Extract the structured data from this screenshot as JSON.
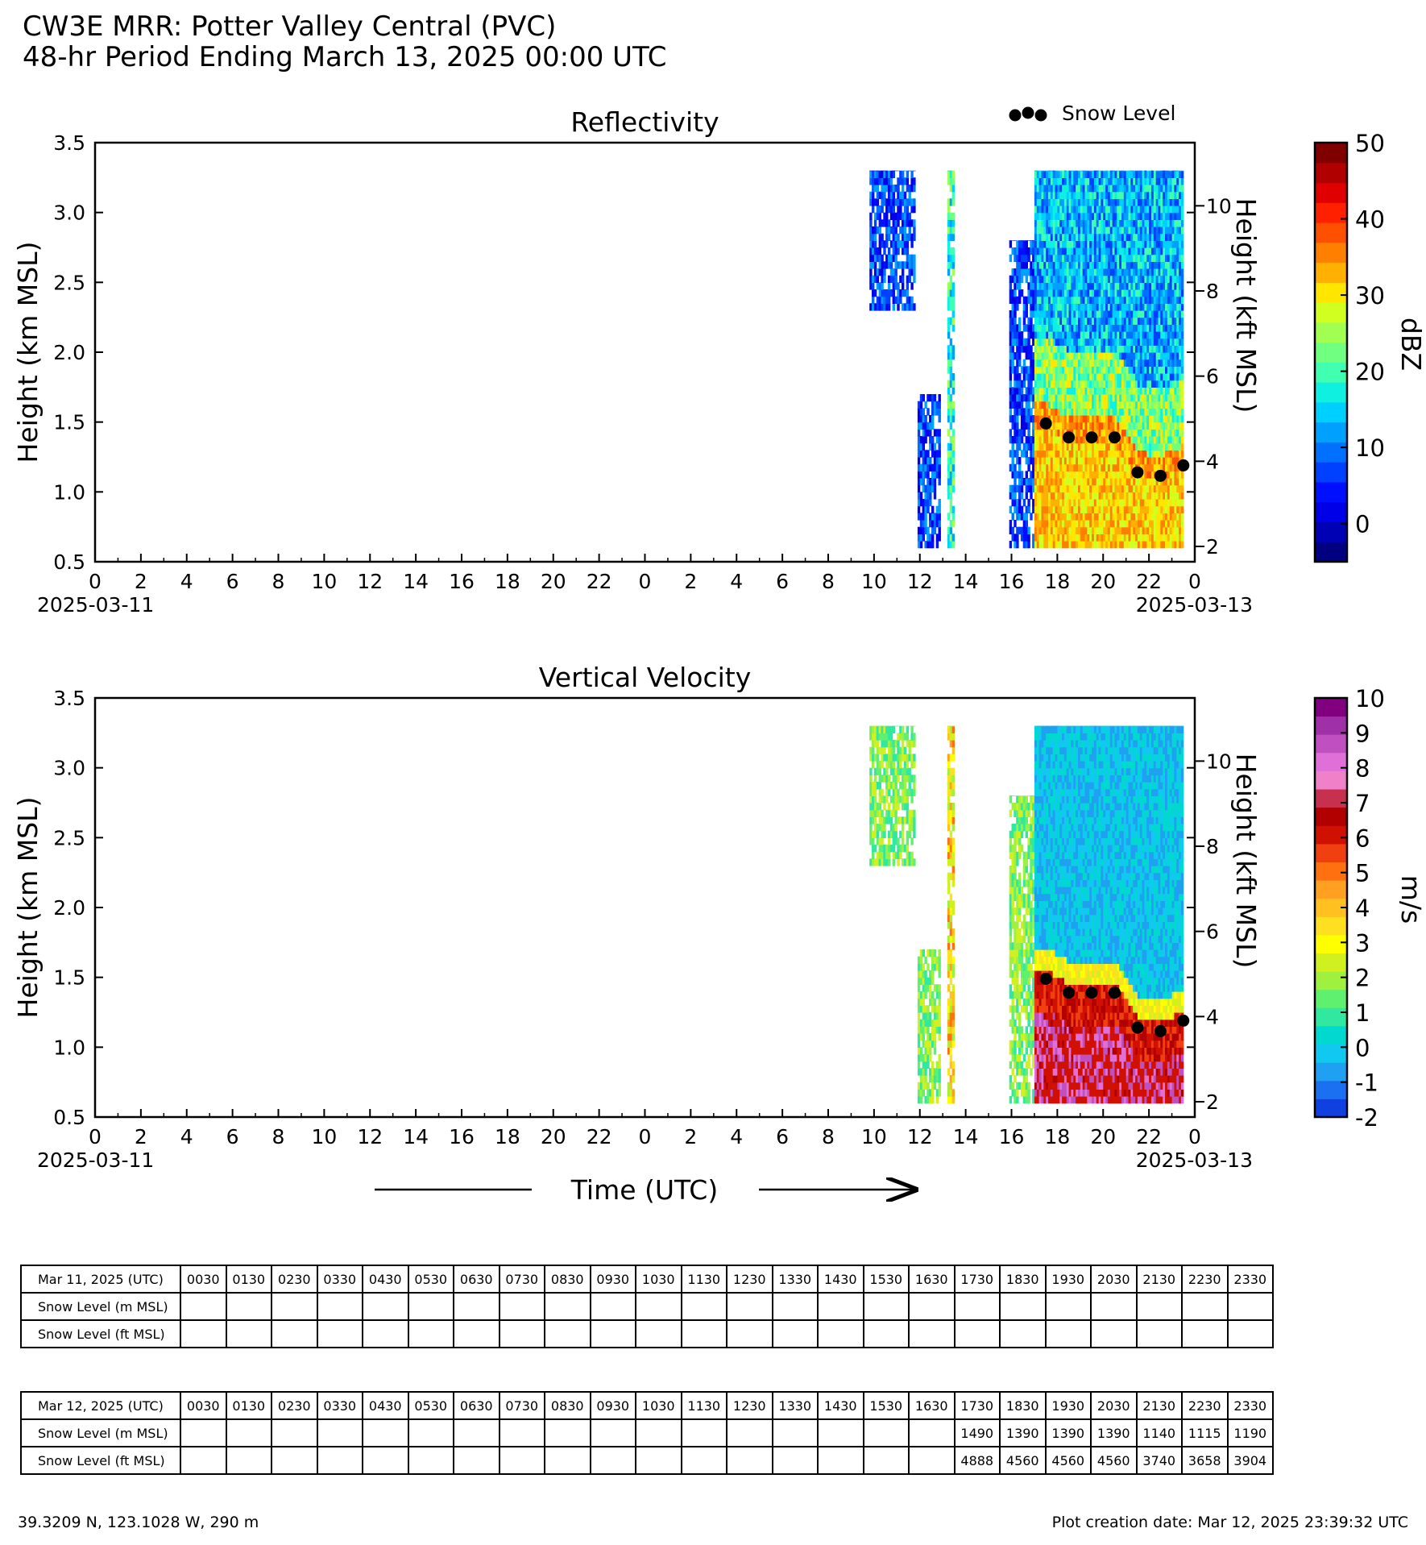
{
  "header": {
    "title_line1": "CW3E MRR: Potter Valley Central (PVC)",
    "title_line2": "48-hr Period Ending March 13, 2025 00:00 UTC"
  },
  "chart_data": [
    {
      "type": "heatmap",
      "title": "Reflectivity",
      "ylabel": "Height (km MSL)",
      "ylabel_right": "Height (kft MSL)",
      "xlabel": "Time (UTC)",
      "xlim_hours": [
        0,
        48
      ],
      "ylim": [
        0.5,
        3.5
      ],
      "y_ticks": [
        "0.5",
        "1.0",
        "1.5",
        "2.0",
        "2.5",
        "3.0",
        "3.5"
      ],
      "y_right_ticks": [
        "2",
        "4",
        "6",
        "8",
        "10"
      ],
      "x_tick_labels": [
        "0",
        "2",
        "4",
        "6",
        "8",
        "10",
        "12",
        "14",
        "16",
        "18",
        "20",
        "22",
        "0",
        "2",
        "4",
        "6",
        "8",
        "10",
        "12",
        "14",
        "16",
        "18",
        "20",
        "22",
        "0"
      ],
      "date_labels": [
        "2025-03-11",
        "2025-03-13"
      ],
      "colorbar": {
        "label": "dBZ",
        "range": [
          -5,
          50
        ],
        "ticks": [
          "0",
          "10",
          "20",
          "30",
          "40",
          "50"
        ],
        "colors": [
          "#000080",
          "#0000b4",
          "#0000e6",
          "#0010ff",
          "#0040ff",
          "#0070ff",
          "#00a0ff",
          "#00d0ff",
          "#10f0e0",
          "#40ffb0",
          "#70ff80",
          "#a0ff50",
          "#d0ff20",
          "#ffe600",
          "#ffb000",
          "#ff8000",
          "#ff5000",
          "#ff2000",
          "#e00000",
          "#b00000",
          "#800000"
        ]
      },
      "legend": {
        "label": "Snow Level",
        "position": "top-right"
      },
      "echo_segments": [
        {
          "start_h": 33.8,
          "end_h": 35.8,
          "bottom_km": 2.3,
          "top_km": 3.3,
          "palette": "blue"
        },
        {
          "start_h": 35.9,
          "end_h": 36.9,
          "bottom_km": 0.6,
          "top_km": 1.7,
          "palette": "blue"
        },
        {
          "start_h": 37.2,
          "end_h": 37.5,
          "bottom_km": 0.6,
          "top_km": 3.3,
          "palette": "cyan-green"
        },
        {
          "start_h": 39.9,
          "end_h": 41.0,
          "bottom_km": 0.6,
          "top_km": 2.8,
          "palette": "blue"
        },
        {
          "start_h": 41.0,
          "end_h": 47.5,
          "bottom_km": 0.6,
          "top_km": 3.3,
          "palette": "precip"
        }
      ],
      "snow_level": {
        "hours": [
          41.5,
          42.5,
          43.5,
          44.5,
          45.5,
          46.5,
          47.5
        ],
        "values_km": [
          1.49,
          1.39,
          1.39,
          1.39,
          1.14,
          1.115,
          1.19
        ]
      }
    },
    {
      "type": "heatmap",
      "title": "Vertical Velocity",
      "ylabel": "Height (km MSL)",
      "ylabel_right": "Height (kft MSL)",
      "xlabel": "Time (UTC)",
      "xlim_hours": [
        0,
        48
      ],
      "ylim": [
        0.5,
        3.5
      ],
      "y_ticks": [
        "0.5",
        "1.0",
        "1.5",
        "2.0",
        "2.5",
        "3.0",
        "3.5"
      ],
      "y_right_ticks": [
        "2",
        "4",
        "6",
        "8",
        "10"
      ],
      "x_tick_labels": [
        "0",
        "2",
        "4",
        "6",
        "8",
        "10",
        "12",
        "14",
        "16",
        "18",
        "20",
        "22",
        "0",
        "2",
        "4",
        "6",
        "8",
        "10",
        "12",
        "14",
        "16",
        "18",
        "20",
        "22",
        "0"
      ],
      "date_labels": [
        "2025-03-11",
        "2025-03-13"
      ],
      "colorbar": {
        "label": "m/s",
        "range": [
          -2,
          10
        ],
        "ticks": [
          "-2",
          "-1",
          "0",
          "1",
          "2",
          "3",
          "4",
          "5",
          "6",
          "7",
          "8",
          "9",
          "10"
        ],
        "colors": [
          "#1040e0",
          "#1a70f0",
          "#20a0f0",
          "#10c8f0",
          "#00d8d0",
          "#30e8a0",
          "#60f070",
          "#a0f040",
          "#d0f020",
          "#ffff00",
          "#ffe020",
          "#ffc020",
          "#ffa020",
          "#ff7010",
          "#f04010",
          "#d01000",
          "#b00000",
          "#c83050",
          "#f080c8",
          "#e070d8",
          "#c050c0",
          "#a030a8",
          "#800080"
        ]
      },
      "echo_segments": [
        {
          "start_h": 33.8,
          "end_h": 35.8,
          "bottom_km": 2.3,
          "top_km": 3.3,
          "palette": "green"
        },
        {
          "start_h": 35.9,
          "end_h": 36.9,
          "bottom_km": 0.6,
          "top_km": 1.7,
          "palette": "green"
        },
        {
          "start_h": 37.2,
          "end_h": 37.5,
          "bottom_km": 0.6,
          "top_km": 3.3,
          "palette": "yellow-red"
        },
        {
          "start_h": 39.9,
          "end_h": 41.0,
          "bottom_km": 0.6,
          "top_km": 2.8,
          "palette": "green"
        },
        {
          "start_h": 41.0,
          "end_h": 47.5,
          "bottom_km": 0.6,
          "top_km": 3.3,
          "palette": "fall"
        }
      ],
      "snow_level": {
        "hours": [
          41.5,
          42.5,
          43.5,
          44.5,
          45.5,
          46.5,
          47.5
        ],
        "values_km": [
          1.49,
          1.39,
          1.39,
          1.39,
          1.14,
          1.115,
          1.19
        ]
      }
    }
  ],
  "tables": [
    {
      "header": "Mar 11, 2025 (UTC)",
      "times": [
        "0030",
        "0130",
        "0230",
        "0330",
        "0430",
        "0530",
        "0630",
        "0730",
        "0830",
        "0930",
        "1030",
        "1130",
        "1230",
        "1330",
        "1430",
        "1530",
        "1630",
        "1730",
        "1830",
        "1930",
        "2030",
        "2130",
        "2230",
        "2330"
      ],
      "rows": [
        {
          "label": "Snow Level (m MSL)",
          "values": [
            "",
            "",
            "",
            "",
            "",
            "",
            "",
            "",
            "",
            "",
            "",
            "",
            "",
            "",
            "",
            "",
            "",
            "",
            "",
            "",
            "",
            "",
            "",
            ""
          ]
        },
        {
          "label": "Snow Level (ft MSL)",
          "values": [
            "",
            "",
            "",
            "",
            "",
            "",
            "",
            "",
            "",
            "",
            "",
            "",
            "",
            "",
            "",
            "",
            "",
            "",
            "",
            "",
            "",
            "",
            "",
            ""
          ]
        }
      ]
    },
    {
      "header": "Mar 12, 2025 (UTC)",
      "times": [
        "0030",
        "0130",
        "0230",
        "0330",
        "0430",
        "0530",
        "0630",
        "0730",
        "0830",
        "0930",
        "1030",
        "1130",
        "1230",
        "1330",
        "1430",
        "1530",
        "1630",
        "1730",
        "1830",
        "1930",
        "2030",
        "2130",
        "2230",
        "2330"
      ],
      "rows": [
        {
          "label": "Snow Level (m MSL)",
          "values": [
            "",
            "",
            "",
            "",
            "",
            "",
            "",
            "",
            "",
            "",
            "",
            "",
            "",
            "",
            "",
            "",
            "",
            "1490",
            "1390",
            "1390",
            "1390",
            "1140",
            "1115",
            "1190"
          ]
        },
        {
          "label": "Snow Level (ft MSL)",
          "values": [
            "",
            "",
            "",
            "",
            "",
            "",
            "",
            "",
            "",
            "",
            "",
            "",
            "",
            "",
            "",
            "",
            "",
            "4888",
            "4560",
            "4560",
            "4560",
            "3740",
            "3658",
            "3904"
          ]
        }
      ]
    }
  ],
  "footer": {
    "location": "39.3209 N, 123.1028 W, 290 m",
    "created": "Plot creation date: Mar 12, 2025 23:39:32 UTC"
  }
}
